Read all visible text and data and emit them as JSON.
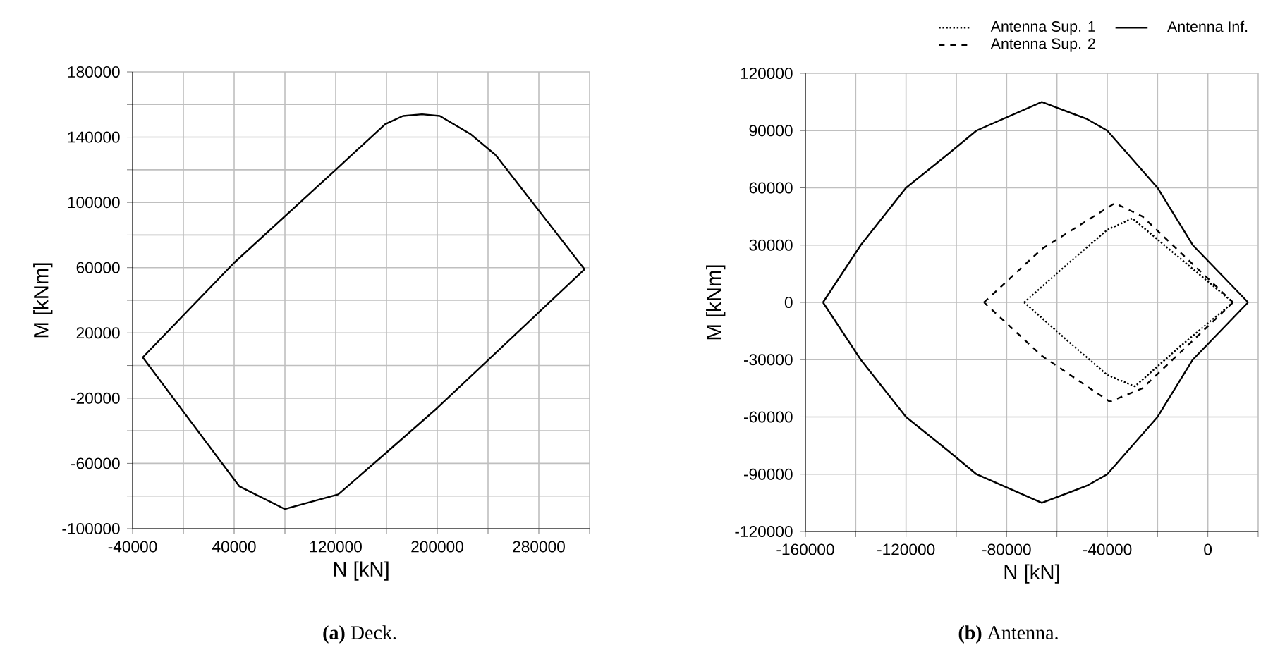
{
  "chart_data": [
    {
      "type": "line",
      "xlabel": "N [kN]",
      "ylabel": "M [kNm]",
      "annotations": [
        "**(a)** Deck."
      ],
      "xlim": [
        -40000,
        320000
      ],
      "ylim": [
        -100000,
        180000
      ],
      "xticks": [
        -40000,
        {
          "value": 0,
          "label": null
        },
        40000,
        {
          "value": 80000,
          "label": null
        },
        120000,
        {
          "value": 160000,
          "label": null
        },
        200000,
        {
          "value": 240000,
          "label": null
        },
        280000,
        {
          "value": 320000,
          "label": null
        }
      ],
      "yticks": [
        -100000,
        {
          "value": -80000,
          "label": null
        },
        -60000,
        {
          "value": -40000,
          "label": null
        },
        -20000,
        {
          "value": 0,
          "label": null
        },
        20000,
        {
          "value": 40000,
          "label": null
        },
        60000,
        {
          "value": 80000,
          "label": null
        },
        100000,
        {
          "value": 120000,
          "label": null
        },
        140000,
        {
          "value": 160000,
          "label": null
        },
        180000
      ],
      "grid": true,
      "marker": "none",
      "series": [
        {
          "color": "#000000",
          "line_style": "solid",
          "x": [
            -32000,
            40000,
            120000,
            159000,
            173000,
            188000,
            202000,
            226000,
            246000,
            316000,
            200000,
            159000,
            122000,
            80000,
            44000,
            -32000
          ],
          "values": [
            5000,
            63000,
            120000,
            148000,
            153000,
            154000,
            153000,
            142000,
            129000,
            59000,
            -26000,
            -54000,
            -79000,
            -88000,
            -74000,
            5000
          ]
        }
      ]
    },
    {
      "type": "line",
      "xlabel": "N [kN]",
      "ylabel": "M [kNm]",
      "annotations": [
        "**(b)** Antenna."
      ],
      "xlim": [
        -160000,
        20000
      ],
      "ylim": [
        -120000,
        120000
      ],
      "xticks": [
        -160000,
        {
          "value": -140000,
          "label": null
        },
        -120000,
        {
          "value": -100000,
          "label": null
        },
        -80000,
        {
          "value": -60000,
          "label": null
        },
        -40000,
        {
          "value": -20000,
          "label": null
        },
        0,
        {
          "value": 20000,
          "label": null
        }
      ],
      "yticks": [
        -120000,
        -90000,
        -60000,
        -30000,
        0,
        30000,
        60000,
        90000,
        120000
      ],
      "grid": true,
      "marker": "none",
      "legend": "top right",
      "series": [
        {
          "name": "Antenna Sup. 1",
          "color": "#000000",
          "line_style": "dotted",
          "x": [
            -73000,
            -55000,
            -40000,
            -30000,
            -11000,
            10000,
            -11000,
            -29000,
            -40000,
            -55000,
            -73000
          ],
          "values": [
            0,
            21000,
            38000,
            44000,
            23000,
            0,
            -23000,
            -44000,
            -38000,
            -21000,
            0
          ]
        },
        {
          "name": "Antenna Sup. 2",
          "color": "#000000",
          "line_style": "dashed",
          "x": [
            -89000,
            -66000,
            -37000,
            -26000,
            10000,
            -26000,
            -39000,
            -66000,
            -89000
          ],
          "values": [
            0,
            28000,
            52000,
            45000,
            0,
            -45000,
            -52000,
            -28000,
            0
          ]
        },
        {
          "name": "Antenna Inf.",
          "color": "#000000",
          "line_style": "solid",
          "x": [
            -153000,
            -138000,
            -120000,
            -103000,
            -92000,
            -66000,
            -48000,
            -40000,
            -20000,
            -6000,
            16000,
            -6000,
            -20000,
            -40000,
            -48000,
            -66000,
            -92000,
            -103000,
            -120000,
            -138000,
            -153000
          ],
          "values": [
            0,
            30000,
            60000,
            78000,
            90000,
            105000,
            96000,
            90000,
            60000,
            30000,
            0,
            -30000,
            -60000,
            -90000,
            -96000,
            -105000,
            -90000,
            -78000,
            -60000,
            -30000,
            0
          ]
        }
      ]
    }
  ]
}
